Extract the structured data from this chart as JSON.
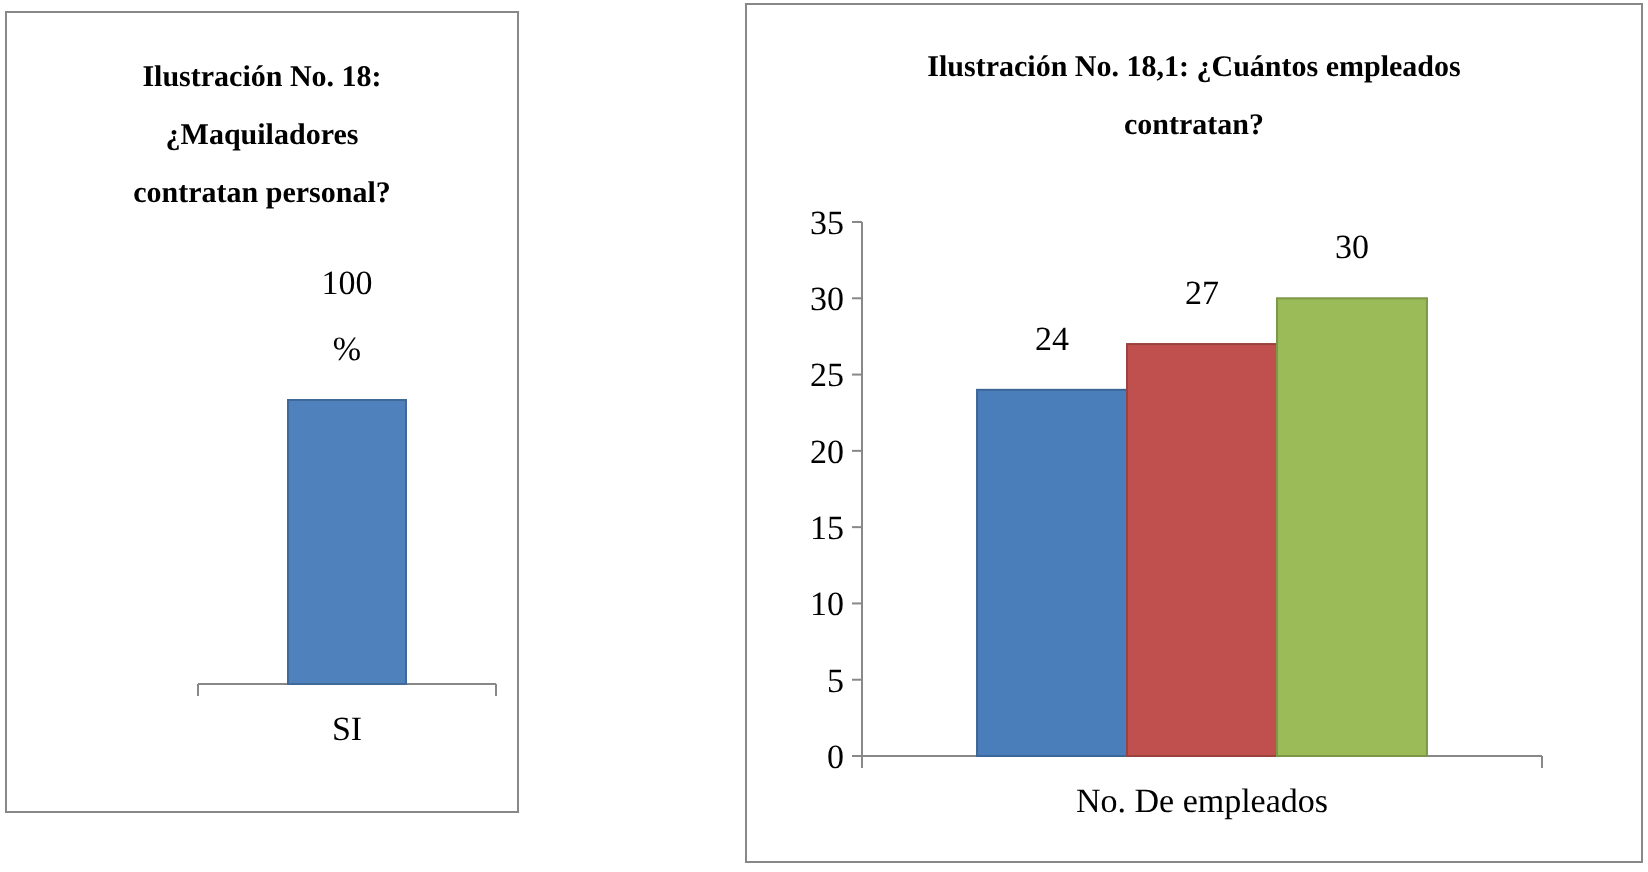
{
  "chart_data": [
    {
      "type": "bar",
      "title": "Ilustración No. 18: ¿Maquiladores contratan personal?",
      "categories": [
        "SI"
      ],
      "ylim": [
        0,
        100
      ],
      "series": [
        {
          "color": "#4f81bd",
          "values": [
            100
          ],
          "value_labels": [
            "100 %"
          ]
        }
      ]
    },
    {
      "type": "bar",
      "title": "Ilustración No. 18,1: ¿Cuántos empleados contratan?",
      "categories": [
        null,
        null,
        null
      ],
      "xlabel": "No. De empleados",
      "series": [
        {
          "colors": [
            "#4a7ebb",
            "#c0504d",
            "#9bbb59"
          ],
          "values": [
            24,
            27,
            30
          ]
        }
      ],
      "ylim": [
        0,
        35
      ],
      "yticks": [
        0,
        5,
        10,
        15,
        20,
        25,
        30,
        35
      ],
      "data_labels": true
    }
  ]
}
